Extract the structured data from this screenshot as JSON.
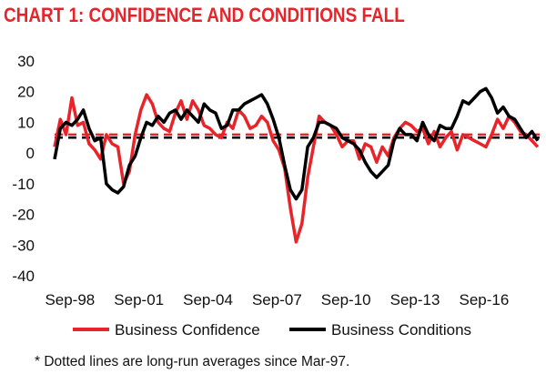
{
  "chart_data": {
    "type": "line",
    "title": "CHART 1: CONFIDENCE AND CONDITIONS FALL",
    "x_tick_labels": [
      "Sep-98",
      "Sep-01",
      "Sep-04",
      "Sep-07",
      "Sep-10",
      "Sep-13",
      "Sep-16"
    ],
    "x_range": [
      "1998-01",
      "2019-02"
    ],
    "ylim": [
      -40,
      30
    ],
    "y_ticks": [
      30,
      20,
      10,
      0,
      -10,
      -20,
      -30,
      -40
    ],
    "grid": false,
    "legend_position": "bottom",
    "series": [
      {
        "name": "Business Confidence",
        "color": "#e8242b",
        "x": [
          "1998-01",
          "1998-04",
          "1998-07",
          "1998-10",
          "1999-01",
          "1999-04",
          "1999-07",
          "1999-10",
          "2000-01",
          "2000-04",
          "2000-07",
          "2000-10",
          "2001-01",
          "2001-04",
          "2001-07",
          "2001-10",
          "2002-01",
          "2002-04",
          "2002-07",
          "2002-10",
          "2003-01",
          "2003-04",
          "2003-07",
          "2003-10",
          "2004-01",
          "2004-04",
          "2004-07",
          "2004-10",
          "2005-01",
          "2005-04",
          "2005-07",
          "2005-10",
          "2006-01",
          "2006-04",
          "2006-07",
          "2006-10",
          "2007-01",
          "2007-04",
          "2007-07",
          "2007-10",
          "2008-01",
          "2008-04",
          "2008-07",
          "2008-10",
          "2009-01",
          "2009-04",
          "2009-07",
          "2009-10",
          "2010-01",
          "2010-04",
          "2010-07",
          "2010-10",
          "2011-01",
          "2011-04",
          "2011-07",
          "2011-10",
          "2012-01",
          "2012-04",
          "2012-07",
          "2012-10",
          "2013-01",
          "2013-04",
          "2013-07",
          "2013-10",
          "2014-01",
          "2014-04",
          "2014-07",
          "2014-10",
          "2015-01",
          "2015-04",
          "2015-07",
          "2015-10",
          "2016-01",
          "2016-04",
          "2016-07",
          "2016-10",
          "2017-01",
          "2017-04",
          "2017-07",
          "2017-10",
          "2018-01",
          "2018-04",
          "2018-07",
          "2018-10",
          "2019-01"
        ],
        "y": [
          2,
          11,
          6,
          18,
          9,
          10,
          3,
          1,
          -2,
          6,
          3,
          2,
          -10,
          -6,
          6,
          14,
          19,
          16,
          10,
          8,
          7,
          13,
          17,
          11,
          17,
          14,
          9,
          8,
          6,
          5,
          10,
          8,
          14,
          12,
          8,
          9,
          12,
          10,
          4,
          1,
          -5,
          -18,
          -29,
          -23,
          -8,
          2,
          12,
          10,
          9,
          6,
          2,
          4,
          4,
          -2,
          3,
          2,
          -3,
          2,
          -1,
          5,
          8,
          10,
          9,
          7,
          8,
          3,
          7,
          2,
          5,
          7,
          1,
          6,
          5,
          4,
          3,
          2,
          6,
          11,
          8,
          12,
          10,
          7,
          6,
          4,
          2
        ]
      },
      {
        "name": "Business Conditions",
        "color": "#000000",
        "x": [
          "1998-01",
          "1998-04",
          "1998-07",
          "1998-10",
          "1999-01",
          "1999-04",
          "1999-07",
          "1999-10",
          "2000-01",
          "2000-04",
          "2000-07",
          "2000-10",
          "2001-01",
          "2001-04",
          "2001-07",
          "2001-10",
          "2002-01",
          "2002-04",
          "2002-07",
          "2002-10",
          "2003-01",
          "2003-04",
          "2003-07",
          "2003-10",
          "2004-01",
          "2004-04",
          "2004-07",
          "2004-10",
          "2005-01",
          "2005-04",
          "2005-07",
          "2005-10",
          "2006-01",
          "2006-04",
          "2006-07",
          "2006-10",
          "2007-01",
          "2007-04",
          "2007-07",
          "2007-10",
          "2008-01",
          "2008-04",
          "2008-07",
          "2008-10",
          "2009-01",
          "2009-04",
          "2009-07",
          "2009-10",
          "2010-01",
          "2010-04",
          "2010-07",
          "2010-10",
          "2011-01",
          "2011-04",
          "2011-07",
          "2011-10",
          "2012-01",
          "2012-04",
          "2012-07",
          "2012-10",
          "2013-01",
          "2013-04",
          "2013-07",
          "2013-10",
          "2014-01",
          "2014-04",
          "2014-07",
          "2014-10",
          "2015-01",
          "2015-04",
          "2015-07",
          "2015-10",
          "2016-01",
          "2016-04",
          "2016-07",
          "2016-10",
          "2017-01",
          "2017-04",
          "2017-07",
          "2017-10",
          "2018-01",
          "2018-04",
          "2018-07",
          "2018-10",
          "2019-01"
        ],
        "y": [
          -2,
          8,
          10,
          9,
          11,
          14,
          8,
          4,
          5,
          -10,
          -12,
          -13,
          -11,
          -4,
          -1,
          5,
          10,
          9,
          12,
          10,
          13,
          14,
          11,
          14,
          12,
          10,
          16,
          14,
          13,
          8,
          9,
          14,
          14,
          16,
          17,
          18,
          19,
          16,
          11,
          5,
          -4,
          -12,
          -15,
          -12,
          2,
          5,
          10,
          10,
          9,
          8,
          5,
          4,
          3,
          1,
          -3,
          -6,
          -8,
          -6,
          -4,
          4,
          8,
          6,
          6,
          4,
          10,
          6,
          4,
          9,
          8,
          8,
          12,
          17,
          16,
          18,
          20,
          21,
          18,
          13,
          15,
          12,
          11,
          8,
          5,
          7,
          4
        ]
      },
      {
        "name": "Business Confidence long-run average",
        "color": "#e8242b",
        "dashed": true,
        "y": [
          6,
          6
        ]
      },
      {
        "name": "Business Conditions long-run average",
        "color": "#000000",
        "dashed": true,
        "y": [
          5,
          5
        ]
      }
    ],
    "legend": [
      {
        "label": "Business Confidence",
        "color": "#e8242b"
      },
      {
        "label": "Business Conditions",
        "color": "#000000"
      }
    ],
    "note": "* Dotted lines are long-run  averages since Mar-97."
  }
}
